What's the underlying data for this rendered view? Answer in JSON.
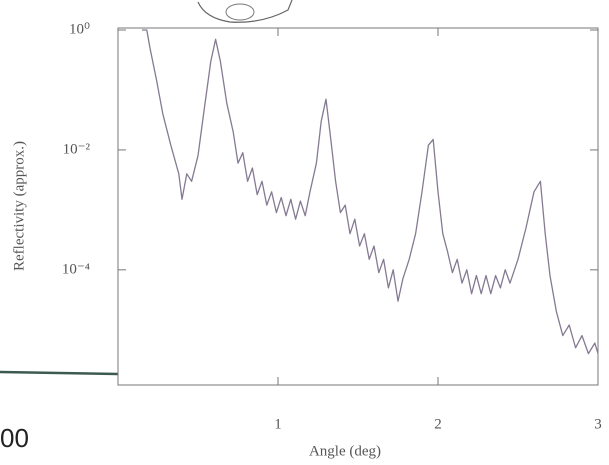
{
  "chart_data": {
    "type": "line",
    "xlabel": "Angle (deg)",
    "ylabel": "Reflectivity (approx.)",
    "stray_text": "00",
    "xlim": [
      0,
      3
    ],
    "xticks": [
      1,
      2,
      3
    ],
    "ylim": [
      1.2e-06,
      1.08
    ],
    "log_y": true,
    "yticks": [
      {
        "value": 1,
        "label": "10⁰"
      },
      {
        "value": 0.01,
        "label": "10⁻²"
      },
      {
        "value": 0.0001,
        "label": "10⁻⁴"
      }
    ],
    "grid": false,
    "series": [
      {
        "color": "#857a92",
        "x": [
          0.15,
          0.18,
          0.2,
          0.24,
          0.28,
          0.33,
          0.38,
          0.4,
          0.43,
          0.46,
          0.5,
          0.54,
          0.58,
          0.61,
          0.64,
          0.68,
          0.72,
          0.75,
          0.78,
          0.81,
          0.84,
          0.87,
          0.9,
          0.93,
          0.96,
          0.99,
          1.02,
          1.05,
          1.08,
          1.11,
          1.14,
          1.17,
          1.2,
          1.24,
          1.27,
          1.3,
          1.33,
          1.36,
          1.39,
          1.42,
          1.45,
          1.48,
          1.51,
          1.54,
          1.57,
          1.6,
          1.63,
          1.66,
          1.69,
          1.72,
          1.75,
          1.78,
          1.82,
          1.86,
          1.9,
          1.94,
          1.97,
          2.0,
          2.03,
          2.06,
          2.09,
          2.12,
          2.15,
          2.18,
          2.21,
          2.24,
          2.27,
          2.3,
          2.33,
          2.36,
          2.39,
          2.42,
          2.45,
          2.5,
          2.55,
          2.6,
          2.64,
          2.67,
          2.7,
          2.74,
          2.78,
          2.82,
          2.86,
          2.9,
          2.94,
          2.98,
          3.0
        ],
        "values": [
          1,
          1,
          0.5,
          0.15,
          0.04,
          0.012,
          0.004,
          0.0015,
          0.004,
          0.003,
          0.008,
          0.05,
          0.3,
          0.7,
          0.3,
          0.06,
          0.02,
          0.006,
          0.009,
          0.003,
          0.005,
          0.0018,
          0.003,
          0.0012,
          0.002,
          0.0009,
          0.0016,
          0.0008,
          0.0015,
          0.0007,
          0.0014,
          0.0008,
          0.002,
          0.006,
          0.03,
          0.07,
          0.015,
          0.003,
          0.0009,
          0.0012,
          0.0004,
          0.0007,
          0.00025,
          0.0004,
          0.00015,
          0.00025,
          9e-05,
          0.00015,
          5e-05,
          0.0001,
          3e-05,
          7e-05,
          0.00015,
          0.0004,
          0.002,
          0.012,
          0.015,
          0.002,
          0.0004,
          0.0002,
          9e-05,
          0.00015,
          6e-05,
          0.0001,
          4e-05,
          8e-05,
          4e-05,
          8e-05,
          4e-05,
          8e-05,
          5e-05,
          0.0001,
          6e-05,
          0.00015,
          0.0005,
          0.002,
          0.003,
          0.0004,
          8e-05,
          2e-05,
          8e-06,
          1.2e-05,
          5e-06,
          8e-06,
          4e-06,
          6e-06,
          4e-06
        ]
      }
    ]
  }
}
